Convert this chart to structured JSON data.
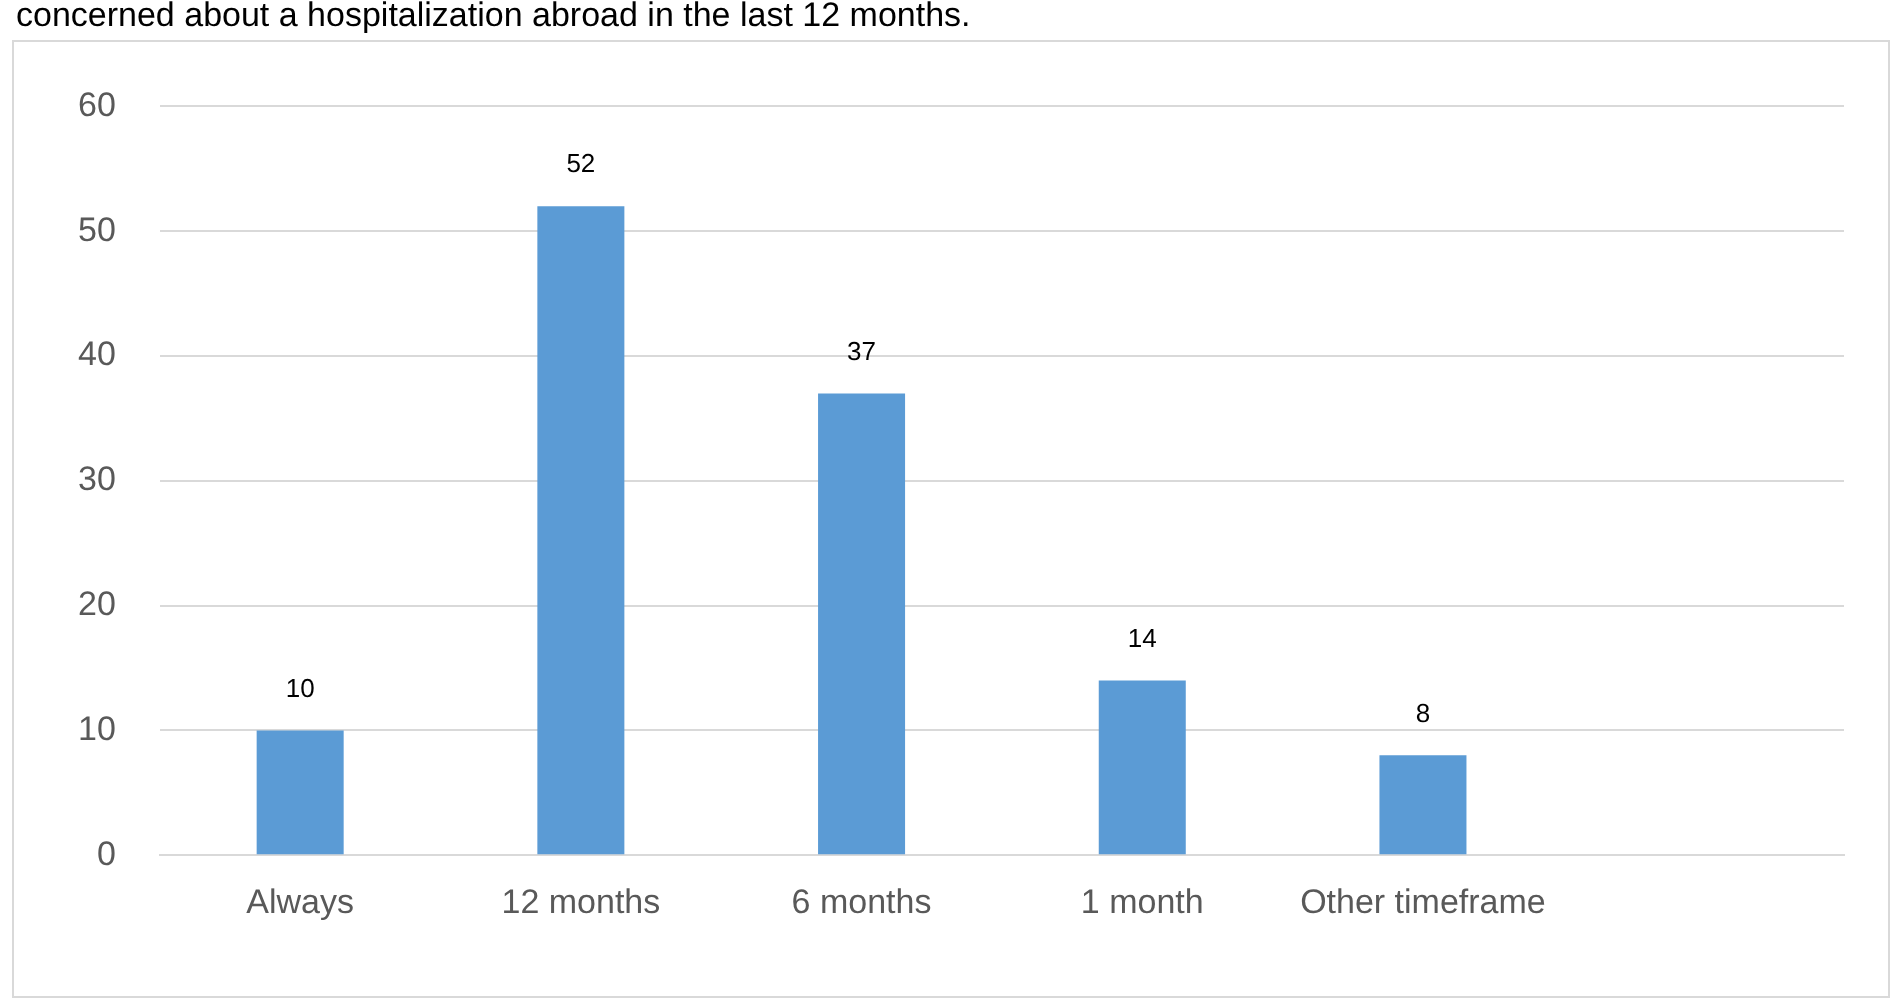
{
  "chart_data": {
    "type": "bar",
    "annotations": [
      "concerned about a hospitalization abroad in the last 12 months."
    ],
    "categories": [
      "Always",
      "12 months",
      "6 months",
      "1 month",
      "Other timeframe",
      null
    ],
    "values": [
      10,
      52,
      37,
      14,
      8,
      null
    ],
    "color": "#5b9bd5",
    "ylim": [
      0,
      60
    ],
    "yticks": [
      0,
      10,
      20,
      30,
      40,
      50,
      60
    ],
    "grid": "y",
    "data_labels": true,
    "legend": false
  }
}
